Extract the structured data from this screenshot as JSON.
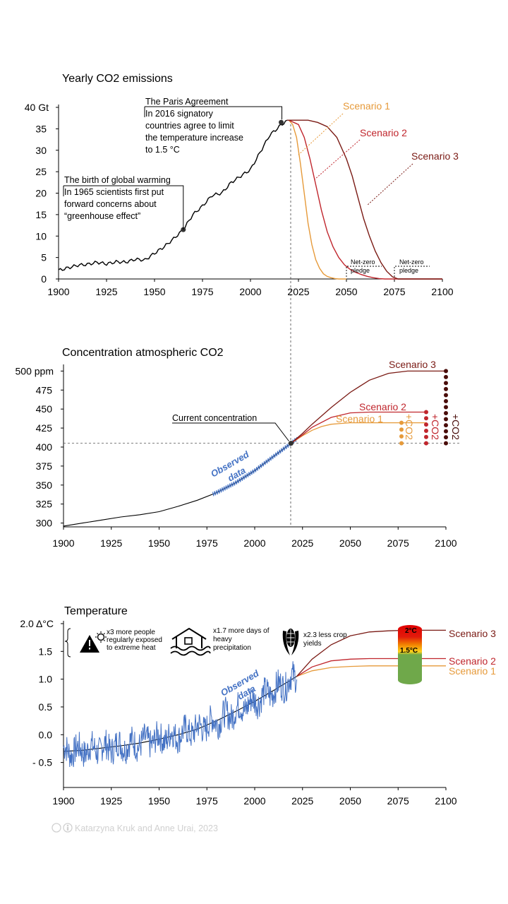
{
  "colors": {
    "observed": "#4472c4",
    "history": "#000000",
    "scenario1": "#e69a3a",
    "scenario2": "#c0262d",
    "scenario3": "#7a1a14",
    "scenario3_dots": "#4a0d0a"
  },
  "credit": "Katarzyna Kruk and Anne Urai, 2023",
  "chart_data": [
    {
      "type": "line",
      "title": "Yearly CO2 emissions",
      "x_ticks": [
        "1900",
        "1925",
        "1950",
        "1975",
        "2000",
        "2025",
        "2050",
        "2075",
        "2100"
      ],
      "y_ticks": [
        "0",
        "5",
        "10",
        "15",
        "20",
        "25",
        "30",
        "35",
        "40 Gt"
      ],
      "xlim": [
        1900,
        2100
      ],
      "ylim": [
        0,
        40
      ],
      "historical": {
        "x": [
          1900,
          1905,
          1910,
          1915,
          1920,
          1925,
          1930,
          1935,
          1940,
          1945,
          1950,
          1955,
          1960,
          1965,
          1970,
          1975,
          1980,
          1985,
          1990,
          1995,
          2000,
          2005,
          2010,
          2015,
          2019
        ],
        "y": [
          2.0,
          2.6,
          3.2,
          3.4,
          3.9,
          3.5,
          4.0,
          3.9,
          4.6,
          4.4,
          6.0,
          7.5,
          9.4,
          11.5,
          15.0,
          17.0,
          19.5,
          20.0,
          22.5,
          24.0,
          25.5,
          29.5,
          33.5,
          35.5,
          37.0
        ]
      },
      "series": [
        {
          "name": "Scenario 1",
          "x": [
            2020,
            2022,
            2024,
            2026,
            2028,
            2030,
            2032,
            2034,
            2036,
            2038,
            2040,
            2042,
            2044,
            2046,
            2048,
            2050
          ],
          "y": [
            37,
            36,
            33,
            27,
            20,
            13,
            8,
            4.5,
            2.5,
            1.2,
            0.6,
            0.3,
            0.1,
            0,
            0,
            0
          ]
        },
        {
          "name": "Scenario 2",
          "x": [
            2020,
            2025,
            2028,
            2031,
            2034,
            2037,
            2040,
            2043,
            2046,
            2049,
            2052,
            2055,
            2058,
            2061,
            2064,
            2067,
            2070,
            2075,
            2100
          ],
          "y": [
            37,
            36,
            33,
            28,
            22,
            16,
            11,
            7.5,
            5,
            3.3,
            2.2,
            1.5,
            1.0,
            0.6,
            0.3,
            0.1,
            0,
            0,
            0
          ]
        },
        {
          "name": "Scenario 3",
          "x": [
            2020,
            2025,
            2030,
            2035,
            2040,
            2045,
            2050,
            2053,
            2056,
            2059,
            2062,
            2065,
            2068,
            2071,
            2074,
            2077,
            2100
          ],
          "y": [
            37,
            37,
            37,
            36.5,
            35.5,
            33,
            28,
            24,
            19,
            14,
            10,
            6.5,
            3.8,
            1.8,
            0.5,
            0,
            0
          ]
        }
      ],
      "annotations": [
        {
          "title": "The Paris Agreement",
          "text": [
            "In 2016 signatory",
            "countries agree to limit",
            "the temperature increase",
            "to 1.5 °C"
          ],
          "x": 2016,
          "y": 36.5
        },
        {
          "title": "The birth of global warming",
          "text": [
            "In 1965 scientists first put",
            "forward concerns about",
            "“greenhouse effect”"
          ],
          "x": 1965,
          "y": 11.5
        },
        {
          "title": "Net-zero",
          "text": [
            "pledge"
          ],
          "x": 2050
        },
        {
          "title": "Net-zero",
          "text": [
            "pledge"
          ],
          "x": 2075
        }
      ]
    },
    {
      "type": "line",
      "title": "Concentration atmospheric CO2",
      "x_ticks": [
        "1900",
        "1925",
        "1950",
        "1975",
        "2000",
        "2025",
        "2050",
        "2075",
        "2100"
      ],
      "y_ticks": [
        "300",
        "325",
        "350",
        "375",
        "400",
        "425",
        "450",
        "475",
        "500 ppm"
      ],
      "xlim": [
        1900,
        2100
      ],
      "ylim": [
        295,
        505
      ],
      "observed_label": [
        "Observed",
        "data"
      ],
      "current_label": "Current concentration",
      "current": {
        "x": 2019,
        "y": 405
      },
      "fit": {
        "x": [
          1900,
          1910,
          1920,
          1930,
          1940,
          1950,
          1960,
          1970,
          1980,
          1990,
          2000,
          2010,
          2019
        ],
        "y": [
          296,
          300,
          304,
          308,
          311,
          315,
          322,
          330,
          340,
          353,
          369,
          388,
          405
        ]
      },
      "observed": {
        "x_start": 1978,
        "x_end": 2022
      },
      "series": [
        {
          "name": "Scenario 1",
          "x": [
            2019,
            2025,
            2030,
            2035,
            2040,
            2045,
            2050,
            2060,
            2070,
            2080,
            2090
          ],
          "y": [
            405,
            415,
            422,
            427,
            430,
            431,
            432,
            432,
            432,
            432,
            432
          ]
        },
        {
          "name": "Scenario 2",
          "x": [
            2019,
            2025,
            2030,
            2040,
            2050,
            2060,
            2070,
            2080,
            2090
          ],
          "y": [
            405,
            416,
            426,
            439,
            445,
            446,
            446,
            446,
            446
          ]
        },
        {
          "name": "Scenario 3",
          "x": [
            2019,
            2025,
            2030,
            2040,
            2050,
            2060,
            2070,
            2080,
            2090,
            2100
          ],
          "y": [
            405,
            418,
            430,
            452,
            472,
            488,
            497,
            500,
            500,
            500
          ]
        }
      ],
      "co2_label": "+CO2"
    },
    {
      "type": "line",
      "title": "Temperature",
      "x_ticks": [
        "1900",
        "1925",
        "1950",
        "1975",
        "2000",
        "2025",
        "2050",
        "2075",
        "2100"
      ],
      "y_ticks": [
        "- 0.5",
        "0.0",
        "0.5",
        "1.0",
        "1.5",
        "2.0 Δ°C"
      ],
      "xlim": [
        1900,
        2100
      ],
      "ylim": [
        -0.95,
        2.0
      ],
      "observed_label": [
        "Observed",
        "data"
      ],
      "fit": {
        "x": [
          1900,
          1910,
          1920,
          1930,
          1940,
          1950,
          1960,
          1970,
          1980,
          1990,
          2000,
          2010,
          2022
        ],
        "y": [
          -0.3,
          -0.28,
          -0.24,
          -0.2,
          -0.15,
          -0.08,
          0.0,
          0.1,
          0.25,
          0.42,
          0.6,
          0.8,
          1.05
        ]
      },
      "observed": {
        "x_start": 1900,
        "x_end": 2022
      },
      "series": [
        {
          "name": "Scenario 1",
          "x": [
            2022,
            2030,
            2040,
            2050,
            2060,
            2070,
            2080,
            2090,
            2100
          ],
          "y": [
            1.05,
            1.15,
            1.21,
            1.23,
            1.24,
            1.24,
            1.24,
            1.24,
            1.24
          ]
        },
        {
          "name": "Scenario 2",
          "x": [
            2022,
            2030,
            2040,
            2050,
            2060,
            2070,
            2080,
            2090,
            2100
          ],
          "y": [
            1.05,
            1.22,
            1.33,
            1.36,
            1.37,
            1.37,
            1.37,
            1.37,
            1.37
          ]
        },
        {
          "name": "Scenario 3",
          "x": [
            2022,
            2030,
            2040,
            2050,
            2060,
            2070,
            2080,
            2090,
            2100
          ],
          "y": [
            1.05,
            1.36,
            1.62,
            1.78,
            1.85,
            1.87,
            1.88,
            1.88,
            1.88
          ]
        }
      ],
      "impacts": [
        {
          "icon": "extreme-heat-icon",
          "text": [
            "x3 more people",
            "regularly exposed",
            "to extreme heat"
          ]
        },
        {
          "icon": "flood-house-icon",
          "text": [
            "x1.7 more days of",
            "heavy",
            "precipitation"
          ]
        },
        {
          "icon": "corn-icon",
          "text": [
            "x2.3 less crop",
            "yields"
          ]
        }
      ],
      "thermometer": {
        "top_label": "2°C",
        "mid_label": "1.5°C"
      }
    }
  ]
}
